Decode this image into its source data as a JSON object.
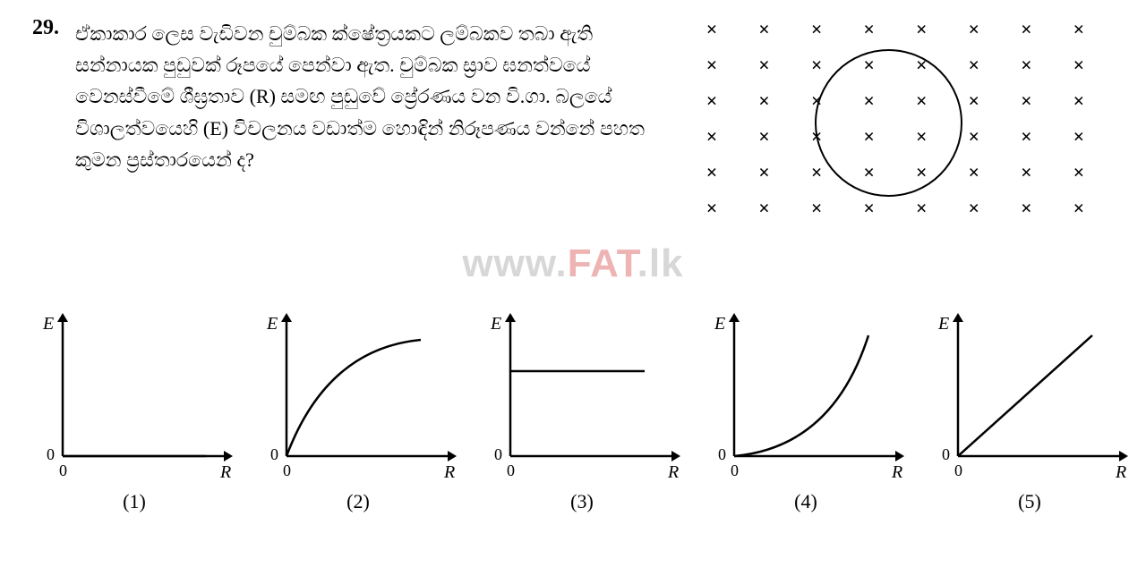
{
  "question": {
    "number": "29.",
    "text_line1": "ඒකාකාර ලෙස වැඩිවන චුම්බක ක්ෂේත්‍රයකට ලම්බකව තබා ඇති",
    "text_line2": "සන්නායක පුඩුවක් රූපයේ පෙන්වා ඇත. චුම්බක ස්‍රාව ඝනත්වයේ",
    "text_line3": "වෙනස්වීමේ ශීඝ්‍රතාව (R) සමඟ පුඩුවේ ප්‍රේරණය වන වි.ගා. බලයේ",
    "text_line4": "විශාලත්වයෙහි (E) විචලනය වඩාත්ම හොඳින් නිරූපණය වන්නේ පහත",
    "text_line5": "කුමන ප්‍රස්තාරයෙන් ද?"
  },
  "watermark": {
    "part1": "www.",
    "part2": "FAT",
    "part3": ".lk"
  },
  "graphs": {
    "y_axis_label": "E",
    "x_axis_label": "R",
    "origin_label": "0",
    "options": [
      {
        "label": "(1)",
        "curve_type": "flat_zero"
      },
      {
        "label": "(2)",
        "curve_type": "concave_down_saturating"
      },
      {
        "label": "(3)",
        "curve_type": "horizontal_nonzero"
      },
      {
        "label": "(4)",
        "curve_type": "concave_up_accelerating"
      },
      {
        "label": "(5)",
        "curve_type": "linear_through_origin"
      }
    ],
    "axis_stroke": "#000000",
    "curve_stroke": "#000000",
    "stroke_width": 2.5,
    "arrow_size": 10
  },
  "field": {
    "rows": 6,
    "cols": 8,
    "symbol": "×"
  }
}
